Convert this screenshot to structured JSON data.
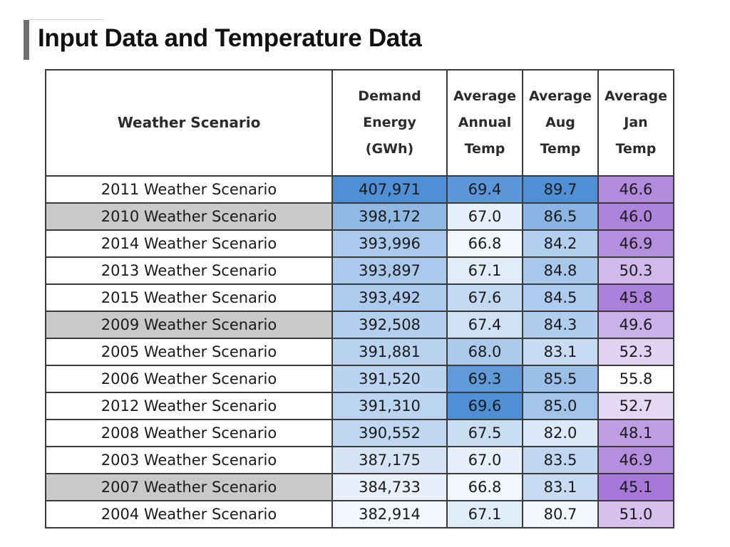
{
  "title": "Input Data and Temperature Data",
  "colors": {
    "energy_low": "#f2f7fd",
    "energy_high": "#4f8fd6",
    "annual_low": "#f2f7fd",
    "annual_high": "#4f8fd6",
    "aug_low": "#f2f7fd",
    "aug_high": "#4f8fd6",
    "jan_low": "#a678d9",
    "jan_high": "#ffffff",
    "row_shade": "#c9c9c9"
  },
  "table": {
    "headers": {
      "scenario": [
        "Weather Scenario"
      ],
      "energy": [
        "Demand",
        "Energy",
        "(GWh)"
      ],
      "annual": [
        "Average",
        "Annual",
        "Temp"
      ],
      "aug": [
        "Average",
        "Aug",
        "Temp"
      ],
      "jan": [
        "Average",
        "Jan",
        "Temp"
      ]
    },
    "rows": [
      {
        "scenario": "2011 Weather Scenario",
        "energy": "407,971",
        "annual": "69.4",
        "aug": "89.7",
        "jan": "46.6",
        "shaded": false
      },
      {
        "scenario": "2010 Weather Scenario",
        "energy": "398,172",
        "annual": "67.0",
        "aug": "86.5",
        "jan": "46.0",
        "shaded": true
      },
      {
        "scenario": "2014 Weather Scenario",
        "energy": "393,996",
        "annual": "66.8",
        "aug": "84.2",
        "jan": "46.9",
        "shaded": false
      },
      {
        "scenario": "2013 Weather Scenario",
        "energy": "393,897",
        "annual": "67.1",
        "aug": "84.8",
        "jan": "50.3",
        "shaded": false
      },
      {
        "scenario": "2015 Weather Scenario",
        "energy": "393,492",
        "annual": "67.6",
        "aug": "84.5",
        "jan": "45.8",
        "shaded": false
      },
      {
        "scenario": "2009 Weather Scenario",
        "energy": "392,508",
        "annual": "67.4",
        "aug": "84.3",
        "jan": "49.6",
        "shaded": true
      },
      {
        "scenario": "2005 Weather Scenario",
        "energy": "391,881",
        "annual": "68.0",
        "aug": "83.1",
        "jan": "52.3",
        "shaded": false
      },
      {
        "scenario": "2006 Weather Scenario",
        "energy": "391,520",
        "annual": "69.3",
        "aug": "85.5",
        "jan": "55.8",
        "shaded": false
      },
      {
        "scenario": "2012 Weather Scenario",
        "energy": "391,310",
        "annual": "69.6",
        "aug": "85.0",
        "jan": "52.7",
        "shaded": false
      },
      {
        "scenario": "2008 Weather Scenario",
        "energy": "390,552",
        "annual": "67.5",
        "aug": "82.0",
        "jan": "48.1",
        "shaded": false
      },
      {
        "scenario": "2003 Weather Scenario",
        "energy": "387,175",
        "annual": "67.0",
        "aug": "83.5",
        "jan": "46.9",
        "shaded": false
      },
      {
        "scenario": "2007 Weather Scenario",
        "energy": "384,733",
        "annual": "66.8",
        "aug": "83.1",
        "jan": "45.1",
        "shaded": true
      },
      {
        "scenario": "2004 Weather Scenario",
        "energy": "382,914",
        "annual": "67.1",
        "aug": "80.7",
        "jan": "51.0",
        "shaded": false
      }
    ]
  }
}
